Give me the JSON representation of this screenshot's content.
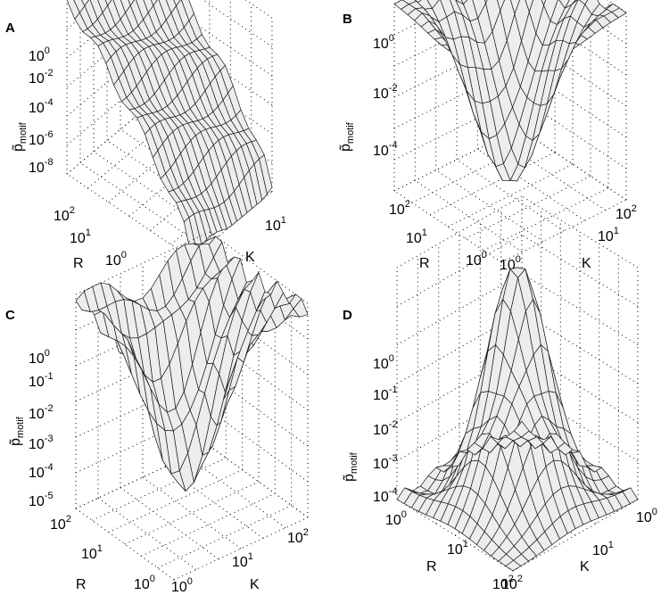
{
  "chart_data": [
    {
      "panel": "A",
      "type": "surface3d",
      "zlabel": "p̃",
      "zlabel_sub": "motif",
      "xlabel": "R",
      "ylabel": "K",
      "zscale": "log",
      "grid": true,
      "z_ticks": [
        {
          "base": "10",
          "exp": "0"
        },
        {
          "base": "10",
          "exp": "-2"
        },
        {
          "base": "10",
          "exp": "-4"
        },
        {
          "base": "10",
          "exp": "-6"
        },
        {
          "base": "10",
          "exp": "-8"
        }
      ],
      "r_ticks": [
        {
          "base": "10",
          "exp": "2"
        },
        {
          "base": "10",
          "exp": "1"
        },
        {
          "base": "10",
          "exp": "0"
        }
      ],
      "k_ticks": [
        {
          "base": "10",
          "exp": "0"
        },
        {
          "base": "10",
          "exp": "1"
        }
      ],
      "surface_shape": "plateau near 1e-2 at low R, falling to about 1e-7 at high R"
    },
    {
      "panel": "B",
      "type": "surface3d",
      "zlabel": "p̃",
      "zlabel_sub": "motif",
      "xlabel": "R",
      "ylabel": "K",
      "zscale": "log",
      "grid": true,
      "z_ticks": [
        {
          "base": "10",
          "exp": "0"
        },
        {
          "base": "10",
          "exp": "-2"
        },
        {
          "base": "10",
          "exp": "-4"
        }
      ],
      "r_ticks": [
        {
          "base": "10",
          "exp": "2"
        },
        {
          "base": "10",
          "exp": "1"
        },
        {
          "base": "10",
          "exp": "0"
        }
      ],
      "k_ticks": [
        {
          "base": "10",
          "exp": "0"
        },
        {
          "base": "10",
          "exp": "1"
        },
        {
          "base": "10",
          "exp": "2"
        }
      ],
      "surface_shape": "valley: about 1e-2 at edges, minimum about 1e-5 in the center"
    },
    {
      "panel": "C",
      "type": "surface3d",
      "zlabel": "p̃",
      "zlabel_sub": "motif",
      "xlabel": "R",
      "ylabel": "K",
      "zscale": "log",
      "grid": true,
      "z_ticks": [
        {
          "base": "10",
          "exp": "0"
        },
        {
          "base": "10",
          "exp": "-1"
        },
        {
          "base": "10",
          "exp": "-2"
        },
        {
          "base": "10",
          "exp": "-3"
        },
        {
          "base": "10",
          "exp": "-4"
        },
        {
          "base": "10",
          "exp": "-5"
        }
      ],
      "r_ticks": [
        {
          "base": "10",
          "exp": "2"
        },
        {
          "base": "10",
          "exp": "1"
        },
        {
          "base": "10",
          "exp": "0"
        }
      ],
      "k_ticks": [
        {
          "base": "10",
          "exp": "0"
        },
        {
          "base": "10",
          "exp": "1"
        },
        {
          "base": "10",
          "exp": "2"
        }
      ],
      "surface_shape": "valley: about 1e-1 at edges, minimum about 1e-5 in the center"
    },
    {
      "panel": "D",
      "type": "surface3d",
      "zlabel": "p̃",
      "zlabel_sub": "motif",
      "xlabel": "R",
      "ylabel": "K",
      "zscale": "log",
      "grid": true,
      "z_ticks": [
        {
          "base": "10",
          "exp": "0"
        },
        {
          "base": "10",
          "exp": "-1"
        },
        {
          "base": "10",
          "exp": "-2"
        },
        {
          "base": "10",
          "exp": "-3"
        },
        {
          "base": "10",
          "exp": "-4"
        }
      ],
      "r_ticks": [
        {
          "base": "10",
          "exp": "0"
        },
        {
          "base": "10",
          "exp": "1"
        },
        {
          "base": "10",
          "exp": "2"
        }
      ],
      "k_ticks": [
        {
          "base": "10",
          "exp": "2"
        },
        {
          "base": "10",
          "exp": "1"
        },
        {
          "base": "10",
          "exp": "0"
        }
      ],
      "surface_shape": "dome: maximum about 1e0 in the center, falling to about 1e-4 at edges"
    }
  ]
}
